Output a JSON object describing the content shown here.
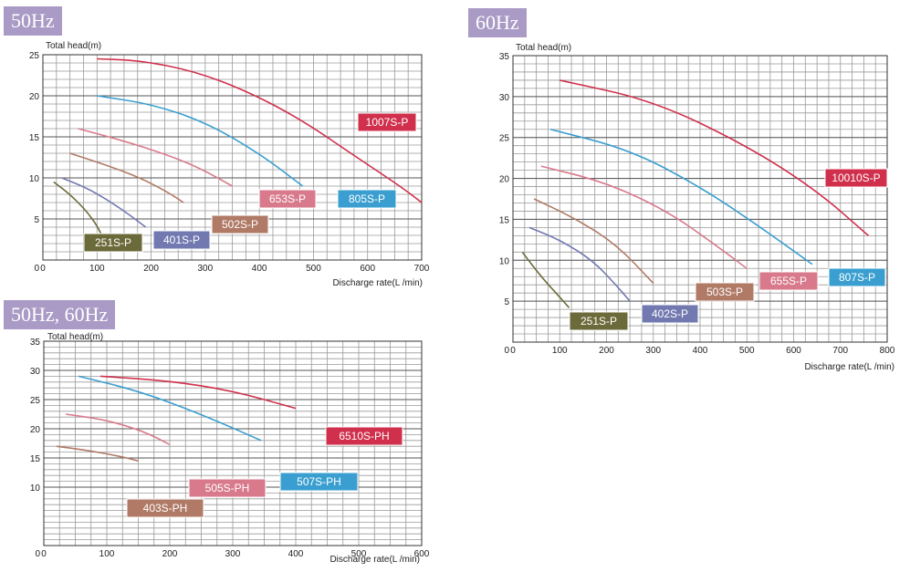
{
  "panels": [
    {
      "badge": "50Hz"
    },
    {
      "badge": "60Hz"
    },
    {
      "badge": "50Hz, 60Hz"
    }
  ],
  "chart_data": [
    {
      "type": "line",
      "title": "50Hz",
      "ylabel": "Total head(m)",
      "xlabel": "Discharge rate(L /min)",
      "xlim": [
        0,
        700
      ],
      "ylim": [
        0,
        25
      ],
      "xticks": [
        0,
        100,
        200,
        300,
        400,
        500,
        600,
        700
      ],
      "yticks": [
        5,
        10,
        15,
        20,
        25
      ],
      "grid": true,
      "series": [
        {
          "name": "251S-P",
          "color": "#6b6a3a",
          "x": [
            20,
            50,
            80,
            100,
            110
          ],
          "y": [
            9.5,
            8,
            6,
            4.2,
            2.8
          ]
        },
        {
          "name": "401S-P",
          "color": "#7279b0",
          "x": [
            35,
            80,
            120,
            160,
            190
          ],
          "y": [
            10,
            8.8,
            7.3,
            5.5,
            4
          ]
        },
        {
          "name": "502S-P",
          "color": "#b07a66",
          "x": [
            50,
            120,
            180,
            230,
            260
          ],
          "y": [
            13,
            11.5,
            10,
            8.3,
            7
          ]
        },
        {
          "name": "653S-P",
          "color": "#d87a8c",
          "x": [
            65,
            150,
            230,
            290,
            350
          ],
          "y": [
            16,
            14.5,
            12.8,
            11.2,
            9
          ]
        },
        {
          "name": "805S-P",
          "color": "#3a9fd0",
          "x": [
            100,
            200,
            300,
            400,
            480
          ],
          "y": [
            20,
            19,
            16.8,
            13,
            9
          ]
        },
        {
          "name": "1007S-P",
          "color": "#d0304c",
          "x": [
            100,
            180,
            280,
            380,
            480,
            580,
            660,
            700
          ],
          "y": [
            24.5,
            24.3,
            23,
            20.5,
            17,
            12.5,
            9,
            7
          ]
        }
      ]
    },
    {
      "type": "line",
      "title": "60Hz",
      "ylabel": "Total head(m)",
      "xlabel": "Discharge rate(L /min)",
      "xlim": [
        0,
        800
      ],
      "ylim": [
        0,
        35
      ],
      "xticks": [
        0,
        100,
        200,
        300,
        400,
        500,
        600,
        700,
        800
      ],
      "yticks": [
        5,
        10,
        15,
        20,
        25,
        30,
        35
      ],
      "grid": true,
      "series": [
        {
          "name": "251S-P",
          "color": "#6b6a3a",
          "x": [
            20,
            60,
            100,
            120
          ],
          "y": [
            11,
            8,
            5.5,
            4.2
          ]
        },
        {
          "name": "402S-P",
          "color": "#7279b0",
          "x": [
            35,
            100,
            170,
            220,
            250
          ],
          "y": [
            14,
            12.5,
            10,
            7,
            5
          ]
        },
        {
          "name": "503S-P",
          "color": "#b07a66",
          "x": [
            45,
            130,
            220,
            300
          ],
          "y": [
            17.5,
            15.2,
            12,
            7.2
          ]
        },
        {
          "name": "655S-P",
          "color": "#d87a8c",
          "x": [
            60,
            200,
            330,
            430,
            500
          ],
          "y": [
            21.5,
            19.5,
            16,
            12,
            9
          ]
        },
        {
          "name": "807S-P",
          "color": "#3a9fd0",
          "x": [
            80,
            250,
            400,
            530,
            640
          ],
          "y": [
            26,
            23.5,
            19,
            14,
            9.5
          ]
        },
        {
          "name": "10010S-P",
          "color": "#d0304c",
          "x": [
            100,
            300,
            500,
            650,
            760
          ],
          "y": [
            32,
            29.5,
            24,
            18.5,
            13
          ]
        }
      ]
    },
    {
      "type": "line",
      "title": "50Hz, 60Hz",
      "ylabel": "Total head(m)",
      "xlabel": "Discharge rate(L /min)",
      "xlim": [
        0,
        600
      ],
      "ylim": [
        0,
        35
      ],
      "xticks": [
        0,
        100,
        200,
        300,
        400,
        500,
        600
      ],
      "yticks": [
        10,
        15,
        20,
        25,
        30,
        35
      ],
      "grid": true,
      "series": [
        {
          "name": "403S-PH",
          "color": "#b07a66",
          "x": [
            20,
            70,
            120,
            150
          ],
          "y": [
            17,
            16.3,
            15.3,
            14.5
          ]
        },
        {
          "name": "505S-PH",
          "color": "#d87a8c",
          "x": [
            35,
            100,
            160,
            200
          ],
          "y": [
            22.5,
            21.5,
            19.5,
            17.3
          ]
        },
        {
          "name": "507S-PH",
          "color": "#3a9fd0",
          "x": [
            55,
            150,
            250,
            345
          ],
          "y": [
            29,
            26.5,
            22.5,
            18
          ]
        },
        {
          "name": "6510S-PH",
          "color": "#d0304c",
          "x": [
            90,
            200,
            300,
            400
          ],
          "y": [
            29,
            28.2,
            26.5,
            23.5
          ]
        }
      ]
    }
  ]
}
